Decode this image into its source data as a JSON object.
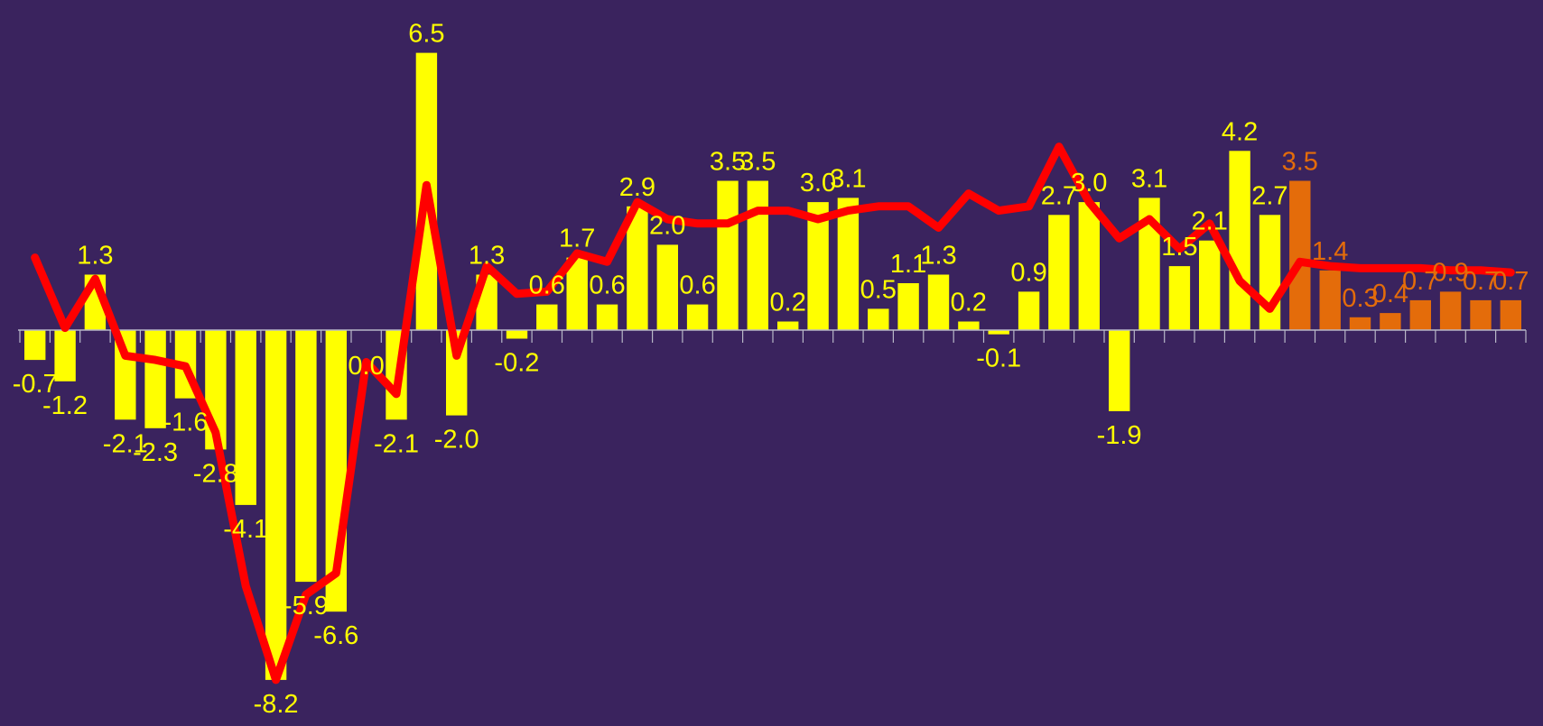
{
  "chart_data": {
    "type": "bar",
    "title": "",
    "xlabel": "",
    "ylabel": "",
    "ylim": [
      -8.2,
      6.5
    ],
    "grid": false,
    "legend": "none",
    "colors": {
      "background": "#3a235e",
      "bar_actual": "#ffff00",
      "bar_forecast": "#e46c0a",
      "line": "#ff0000",
      "axis": "#b8b8c8"
    },
    "series": [
      {
        "type": "bar",
        "values": [
          -0.7,
          -1.2,
          1.3,
          -2.1,
          -2.3,
          -1.6,
          -2.8,
          -4.1,
          -8.2,
          -5.9,
          -6.6,
          0.0,
          -2.1,
          6.5,
          -2.0,
          1.3,
          -0.2,
          0.6,
          1.7,
          0.6,
          2.9,
          2.0,
          0.6,
          3.5,
          3.5,
          0.2,
          3.0,
          3.1,
          0.5,
          1.1,
          1.3,
          0.2,
          -0.1,
          0.9,
          2.7,
          3.0,
          -1.9,
          3.1,
          1.5,
          2.1,
          4.2,
          2.7,
          3.5,
          1.4,
          0.3,
          0.4,
          0.7,
          0.9,
          0.7,
          0.7
        ],
        "labels": [
          "-0.7",
          "-1.2",
          "1.3",
          "-2.1",
          "-2.3",
          "-1.6",
          "-2.8",
          "-4.1",
          "-8.2",
          "-5.9",
          "-6.6",
          "0.0",
          "-2.1",
          "6.5",
          "-2.0",
          "1.3",
          "-0.2",
          "0.6",
          "1.7",
          "0.6",
          "2.9",
          "2.0",
          "0.6",
          "3.5",
          "3.5",
          "0.2",
          "3.0",
          "3.1",
          "0.5",
          "1.1",
          "1.3",
          "0.2",
          "-0.1",
          "0.9",
          "2.7",
          "3.0",
          "-1.9",
          "3.1",
          "1.5",
          "2.1",
          "4.2",
          "2.7",
          "3.5",
          "1.4",
          "0.3",
          "0.4",
          "0.7",
          "0.9",
          "0.7",
          "0.7"
        ],
        "forecast_from_index": 42
      },
      {
        "type": "line",
        "values": [
          1.7,
          0.05,
          1.2,
          -0.6,
          -0.7,
          -0.85,
          -2.4,
          -6.0,
          -8.2,
          -6.2,
          -5.7,
          -0.75,
          -1.5,
          3.4,
          -0.6,
          1.5,
          0.85,
          0.9,
          1.8,
          1.6,
          3.0,
          2.6,
          2.5,
          2.5,
          2.8,
          2.8,
          2.6,
          2.8,
          2.9,
          2.9,
          2.4,
          3.2,
          2.8,
          2.9,
          4.3,
          3.0,
          2.15,
          2.6,
          1.9,
          2.5,
          1.15,
          0.5,
          1.6,
          1.5,
          1.45,
          1.45,
          1.45,
          1.4,
          1.4,
          1.35
        ]
      }
    ]
  }
}
